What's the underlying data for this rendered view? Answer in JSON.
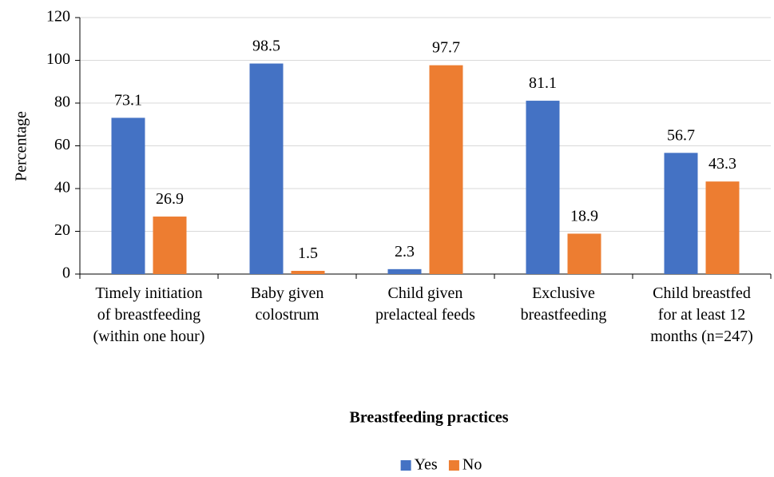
{
  "chart_data": {
    "type": "bar",
    "x_label": "Breastfeeding practices",
    "y_label": "Percentage",
    "categories": [
      "Timely initiation of breastfeeding (within one hour)",
      "Baby given colostrum",
      "Child given prelacteal feeds",
      "Exclusive breastfeeding",
      "Child breastfed for at least 12 months (n=247)"
    ],
    "series": [
      {
        "name": "Yes",
        "color": "#4472c4",
        "values": [
          73.1,
          98.5,
          2.3,
          81.1,
          56.7
        ]
      },
      {
        "name": "No",
        "color": "#ed7d31",
        "values": [
          26.9,
          1.5,
          97.7,
          18.9,
          43.3
        ]
      }
    ],
    "ylim": [
      0,
      120
    ],
    "yticks": [
      0,
      20,
      40,
      60,
      80,
      100,
      120
    ],
    "grid": true,
    "legend": "bottom"
  }
}
